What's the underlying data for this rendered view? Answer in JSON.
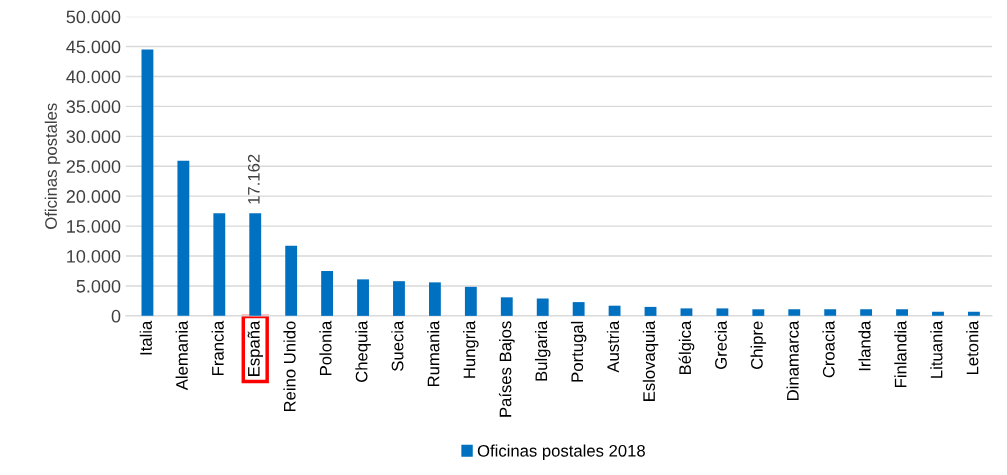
{
  "chart_data": {
    "type": "bar",
    "ylabel": "Oficinas postales",
    "categories": [
      "Italia",
      "Alemania",
      "Francia",
      "España",
      "Reino Unido",
      "Polonia",
      "Chequia",
      "Suecia",
      "Rumania",
      "Hungria",
      "Países Bajos",
      "Bulgaria",
      "Portugal",
      "Austria",
      "Eslovaquia",
      "Bélgica",
      "Grecia",
      "Chipre",
      "Dinamarca",
      "Croacia",
      "Irlanda",
      "Finlandia",
      "Lituania",
      "Letonia"
    ],
    "series": [
      {
        "name": "Oficinas postales 2018",
        "color": "#0070c0",
        "values": [
          44500,
          25900,
          17150,
          17162,
          11700,
          7500,
          6100,
          5800,
          5600,
          4850,
          3100,
          2900,
          2300,
          1700,
          1500,
          1250,
          1250,
          1100,
          1100,
          1100,
          1100,
          1100,
          700,
          700
        ],
        "value_labels": [
          null,
          null,
          null,
          "17.162",
          null,
          null,
          null,
          null,
          null,
          null,
          null,
          null,
          null,
          null,
          null,
          null,
          null,
          null,
          null,
          null,
          null,
          null,
          null,
          null
        ]
      }
    ],
    "ylim": [
      0,
      50000
    ],
    "yticks": [
      0,
      {
        "value": 5000,
        "label": "5.000"
      },
      {
        "value": 10000,
        "label": "10.000"
      },
      {
        "value": 15000,
        "label": "15.000"
      },
      {
        "value": 20000,
        "label": "20.000"
      },
      {
        "value": 25000,
        "label": "25.000"
      },
      {
        "value": 30000,
        "label": "30.000"
      },
      {
        "value": 35000,
        "label": "35.000"
      },
      {
        "value": 40000,
        "label": "40.000"
      },
      {
        "value": 45000,
        "label": "45.000"
      },
      {
        "value": 50000,
        "label": "50.000"
      }
    ],
    "grid": "y",
    "legend": "bottom"
  }
}
